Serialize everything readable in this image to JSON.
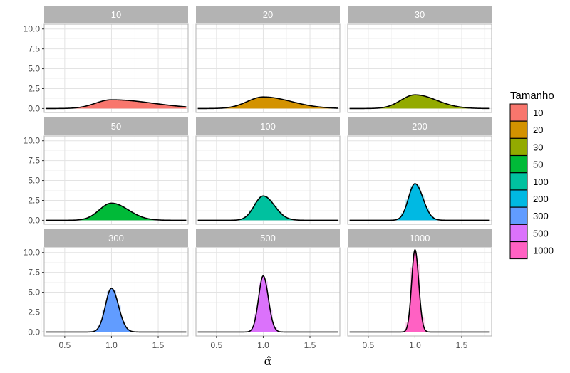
{
  "chart_data": {
    "type": "faceted-density-histogram",
    "x_label": "α̂",
    "x_range": [
      0.28,
      1.82
    ],
    "y_range": [
      -0.5,
      10.6
    ],
    "x_ticks": [
      {
        "value": 0.5,
        "label": "0.5"
      },
      {
        "value": 1.0,
        "label": "1.0"
      },
      {
        "value": 1.5,
        "label": "1.5"
      }
    ],
    "y_ticks": [
      {
        "value": 0.0,
        "label": "0.0"
      },
      {
        "value": 2.5,
        "label": "2.5"
      },
      {
        "value": 5.0,
        "label": "5.0"
      },
      {
        "value": 7.5,
        "label": "7.5"
      },
      {
        "value": 10.0,
        "label": "10.0"
      }
    ],
    "legend_title": "Tamanho",
    "facets": [
      {
        "label": "10",
        "color": "#F8766D",
        "center": 1.0,
        "sd_left": 0.17,
        "sd_right": 0.44,
        "peak": 1.1,
        "trail": 0.1
      },
      {
        "label": "20",
        "color": "#D39200",
        "center": 1.0,
        "sd_left": 0.17,
        "sd_right": 0.3,
        "peak": 1.45,
        "trail": 0.02
      },
      {
        "label": "30",
        "color": "#93AA00",
        "center": 1.0,
        "sd_left": 0.15,
        "sd_right": 0.23,
        "peak": 1.72,
        "trail": 0.0
      },
      {
        "label": "50",
        "color": "#00BA38",
        "center": 1.0,
        "sd_left": 0.13,
        "sd_right": 0.18,
        "peak": 2.15,
        "trail": 0.0
      },
      {
        "label": "100",
        "color": "#00C19F",
        "center": 1.0,
        "sd_left": 0.095,
        "sd_right": 0.12,
        "peak": 3.05,
        "trail": 0.0
      },
      {
        "label": "200",
        "color": "#00B9E3",
        "center": 1.0,
        "sd_left": 0.07,
        "sd_right": 0.085,
        "peak": 4.6,
        "trail": 0.0
      },
      {
        "label": "300",
        "color": "#619CFF",
        "center": 1.0,
        "sd_left": 0.065,
        "sd_right": 0.075,
        "peak": 5.5,
        "trail": 0.0
      },
      {
        "label": "500",
        "color": "#DB72FB",
        "center": 1.0,
        "sd_left": 0.05,
        "sd_right": 0.055,
        "peak": 7.05,
        "trail": 0.0
      },
      {
        "label": "1000",
        "color": "#FF61C3",
        "center": 1.0,
        "sd_left": 0.036,
        "sd_right": 0.04,
        "peak": 10.35,
        "trail": 0.0
      }
    ]
  }
}
